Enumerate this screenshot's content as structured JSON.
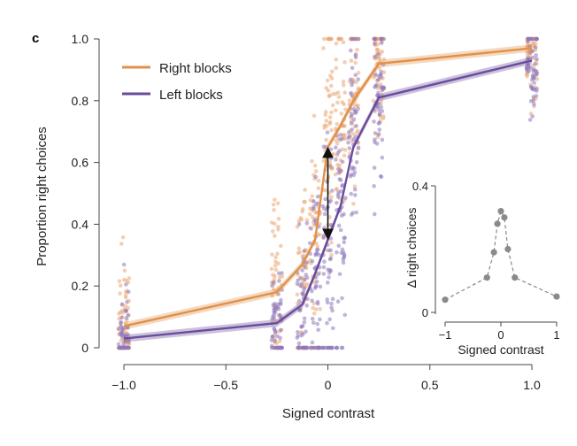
{
  "panel_label": "c",
  "chart_data": [
    {
      "type": "line",
      "xlabel": "Signed contrast",
      "ylabel": "Proportion right choices",
      "xlim": [
        -1.0,
        1.0
      ],
      "ylim": [
        0,
        1.0
      ],
      "xticks": [
        -1.0,
        -0.5,
        0,
        0.5,
        1.0
      ],
      "xtick_labels": [
        "−1.0",
        "−0.5",
        "0",
        "0.5",
        "1.0"
      ],
      "yticks": [
        0,
        0.2,
        0.4,
        0.6,
        0.8,
        1.0
      ],
      "ytick_labels": [
        "0",
        "0.2",
        "0.4",
        "0.6",
        "0.8",
        "1.0"
      ],
      "grid": false,
      "legend": "top-left",
      "x": [
        -1.0,
        -0.25,
        -0.125,
        -0.0625,
        0,
        0.0625,
        0.125,
        0.25,
        1.0
      ],
      "series": [
        {
          "name": "Right blocks",
          "color": "#E0914A",
          "values": [
            0.07,
            0.18,
            0.27,
            0.35,
            0.65,
            0.72,
            0.8,
            0.92,
            0.97
          ]
        },
        {
          "name": "Left blocks",
          "color": "#6A4C9C",
          "values": [
            0.03,
            0.08,
            0.14,
            0.24,
            0.35,
            0.46,
            0.65,
            0.81,
            0.93
          ]
        }
      ],
      "annotation": "double-headed arrow at contrast 0 between the two curves"
    },
    {
      "type": "line",
      "xlabel": "Signed contrast",
      "ylabel": "Δ right choices",
      "xlim": [
        -1,
        1
      ],
      "ylim": [
        0,
        0.4
      ],
      "xticks": [
        -1,
        0,
        1
      ],
      "xtick_labels": [
        "−1",
        "0",
        "1"
      ],
      "yticks": [
        0,
        0.4
      ],
      "ytick_labels": [
        "0",
        "0.4"
      ],
      "line_style": "dashed",
      "color": "#888888",
      "x": [
        -1.0,
        -0.25,
        -0.125,
        -0.0625,
        0,
        0.0625,
        0.125,
        0.25,
        1.0
      ],
      "values": [
        0.04,
        0.11,
        0.19,
        0.28,
        0.32,
        0.3,
        0.2,
        0.11,
        0.05
      ]
    }
  ]
}
